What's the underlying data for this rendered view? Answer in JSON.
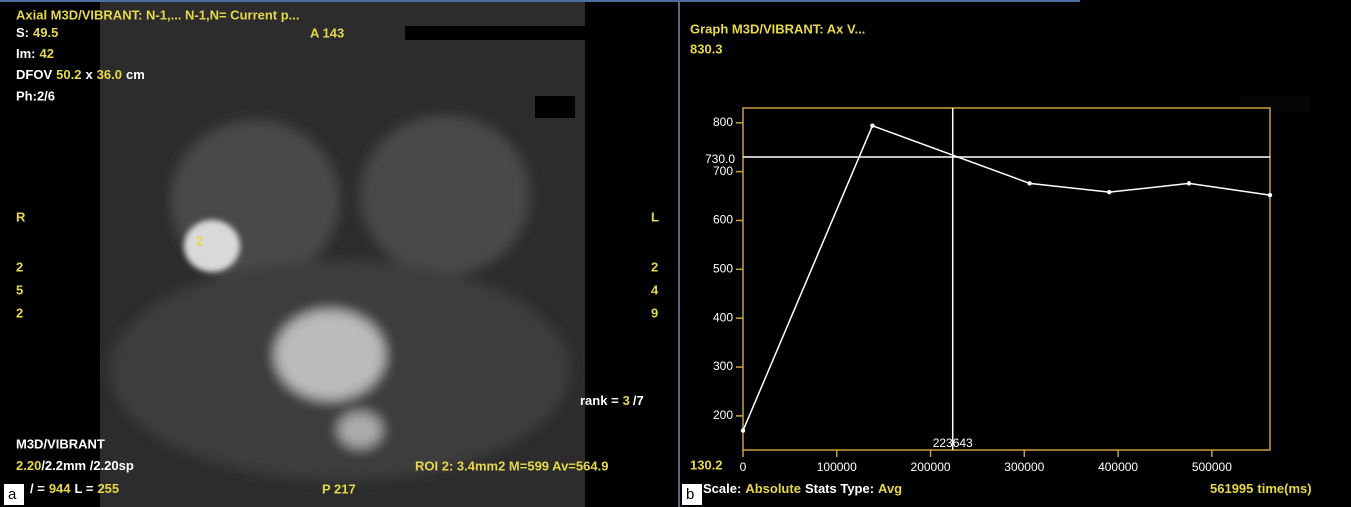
{
  "image_panel": {
    "header": "Axial M3D/VIBRANT: N-1,... N-1,N= Current p...",
    "top_left": [
      [
        "S:",
        "49.5"
      ],
      [
        "Im:",
        "42"
      ],
      [
        "DFOV",
        "50.2",
        "x",
        "36.0",
        "cm"
      ],
      [
        "Ph:2/6"
      ]
    ],
    "anterior": "A 143",
    "right_marker": "R",
    "right_numbers": [
      "2",
      "5",
      "2"
    ],
    "left_marker": "L",
    "left_numbers": [
      "2",
      "4",
      "9"
    ],
    "roi_label": "2",
    "rank": [
      "rank =",
      "3",
      "/7"
    ],
    "bottom_left": [
      [
        "M3D/VIBRANT"
      ],
      [
        "2.20",
        "/2.2mm /2.20sp"
      ],
      [
        "/ =",
        "944",
        "L =",
        "255"
      ]
    ],
    "roi_stats": "ROI 2: 3.4mm2 M=599 Av=564.9",
    "posterior": "P 217",
    "panel_label": "a"
  },
  "chart_data": {
    "type": "line",
    "title": "Graph M3D/VIBRANT: Ax V...",
    "x": [
      0,
      138000,
      305700,
      390600,
      475600,
      561995
    ],
    "values": [
      170,
      794,
      676,
      658,
      676,
      652
    ],
    "color": "#ffffff",
    "axis_color": "#c8a040",
    "xlim": [
      0,
      561995
    ],
    "ylim": [
      130.2,
      830.3
    ],
    "xticks": [
      0,
      100000,
      200000,
      300000,
      400000,
      500000
    ],
    "yticks": [
      200,
      300,
      400,
      500,
      600,
      700,
      800
    ],
    "xlabel": "time(ms)",
    "cursor": {
      "x": 223643,
      "y": {
        "value": 730,
        "label": "730.0"
      }
    },
    "footer": [
      "Scale:",
      "Absolute",
      "Stats Type:",
      "Avg"
    ],
    "panel_label": "b"
  }
}
